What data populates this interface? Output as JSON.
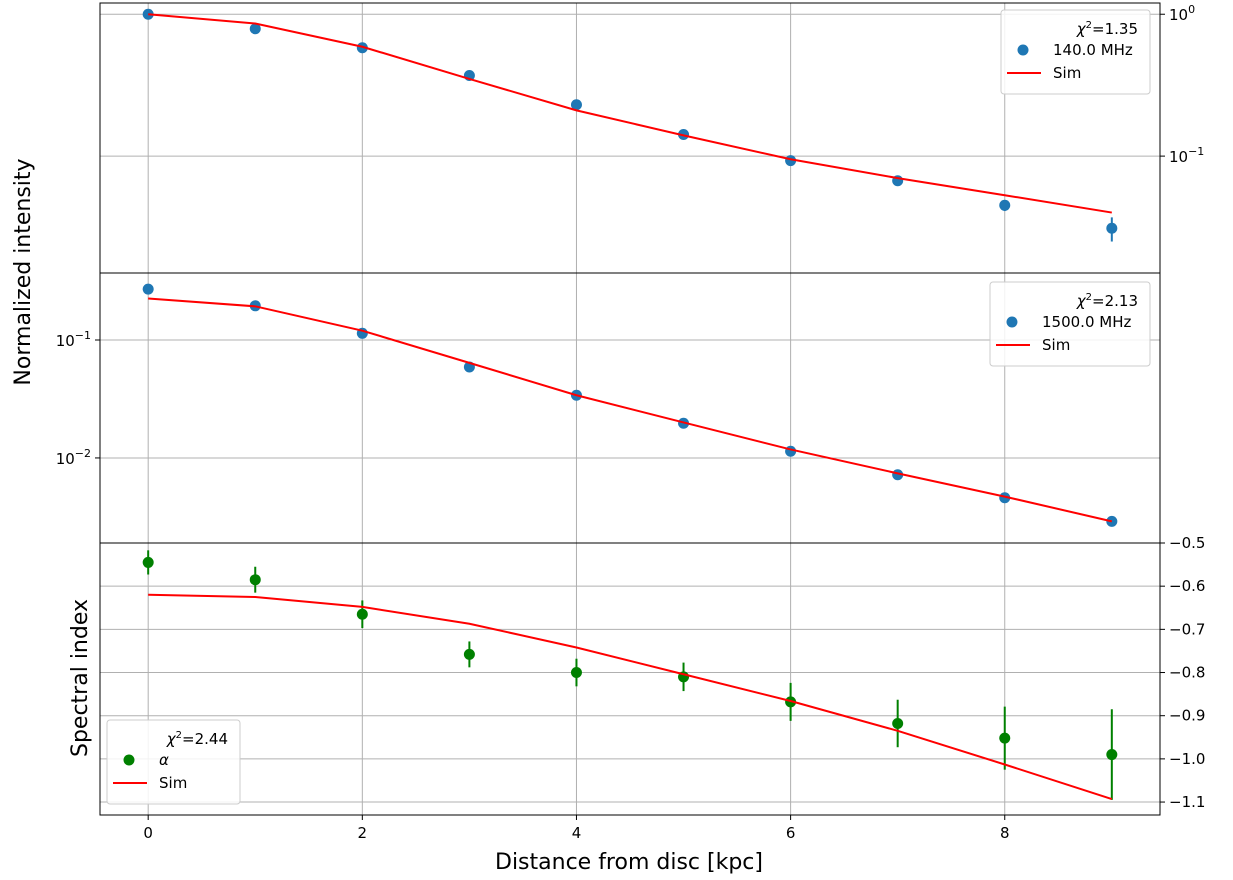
{
  "figure": {
    "xlabel": "Distance from disc [kpc]",
    "xticks": [
      0,
      2,
      4,
      6,
      8
    ],
    "colors": {
      "data_blue": "#1f77b4",
      "data_green": "#008000",
      "sim": "#ff0000",
      "grid": "#b0b0b0"
    }
  },
  "chart_data": [
    {
      "type": "scatter",
      "panel": "top",
      "ylabel": "Normalized intensity",
      "yscale": "log",
      "ylim": [
        0.015,
        1.2
      ],
      "yticks": [
        1,
        0.1
      ],
      "ytick_labels": [
        {
          "base": "10",
          "exp": "0"
        },
        {
          "base": "10",
          "exp": "−1"
        }
      ],
      "y_axis_side": "right",
      "xlim": [
        -0.45,
        9.45
      ],
      "grid": true,
      "legend": {
        "placement": "top-right",
        "title": "χ²=1.35",
        "chi_value": "1.35",
        "entries": [
          "140.0 MHz",
          "Sim"
        ]
      },
      "series": [
        {
          "name": "140.0 MHz",
          "kind": "errorbar-points",
          "color": "#1f77b4",
          "x": [
            0,
            1,
            2,
            3,
            4,
            5,
            6,
            7,
            8,
            9
          ],
          "y": [
            1.0,
            0.79,
            0.58,
            0.37,
            0.23,
            0.142,
            0.093,
            0.067,
            0.045,
            0.031
          ],
          "yerr": [
            0.0,
            0.0,
            0.0,
            0.0,
            0.0,
            0.0,
            0.0,
            0.002,
            0.004,
            0.006
          ]
        },
        {
          "name": "Sim",
          "kind": "line",
          "color": "#ff0000",
          "x": [
            0,
            1,
            2,
            3,
            4,
            5,
            6,
            7,
            8,
            9
          ],
          "y": [
            1.0,
            0.86,
            0.59,
            0.35,
            0.21,
            0.14,
            0.095,
            0.07,
            0.053,
            0.04
          ]
        }
      ]
    },
    {
      "type": "scatter",
      "panel": "middle",
      "yscale": "log",
      "ylim": [
        0.0019,
        0.37
      ],
      "yticks": [
        0.1,
        0.01
      ],
      "ytick_labels": [
        {
          "base": "10",
          "exp": "−1"
        },
        {
          "base": "10",
          "exp": "−2"
        }
      ],
      "y_axis_side": "left",
      "xlim": [
        -0.45,
        9.45
      ],
      "grid": true,
      "legend": {
        "placement": "top-right",
        "title": "χ²=2.13",
        "chi_value": "2.13",
        "entries": [
          "1500.0 MHz",
          "Sim"
        ]
      },
      "series": [
        {
          "name": "1500.0 MHz",
          "kind": "errorbar-points",
          "color": "#1f77b4",
          "x": [
            0,
            1,
            2,
            3,
            4,
            5,
            6,
            7,
            8,
            9
          ],
          "y": [
            0.27,
            0.195,
            0.114,
            0.059,
            0.034,
            0.0197,
            0.0114,
            0.0072,
            0.0046,
            0.0029
          ],
          "yerr": [
            0,
            0,
            0,
            0,
            0,
            0,
            0,
            0,
            0,
            0
          ]
        },
        {
          "name": "Sim",
          "kind": "line",
          "color": "#ff0000",
          "x": [
            0,
            1,
            2,
            3,
            4,
            5,
            6,
            7,
            8,
            9
          ],
          "y": [
            0.225,
            0.193,
            0.12,
            0.064,
            0.034,
            0.02,
            0.0118,
            0.0074,
            0.0047,
            0.0029
          ]
        }
      ]
    },
    {
      "type": "scatter",
      "panel": "bottom",
      "ylabel": "Spectral index",
      "yscale": "linear",
      "ylim": [
        -1.13,
        -0.5
      ],
      "yticks": [
        -0.5,
        -0.6,
        -0.7,
        -0.8,
        -0.9,
        -1.0,
        -1.1
      ],
      "ytick_labels": [
        "−0.5",
        "−0.6",
        "−0.7",
        "−0.8",
        "−0.9",
        "−1.0",
        "−1.1"
      ],
      "y_axis_side": "right",
      "xlim": [
        -0.45,
        9.45
      ],
      "grid": true,
      "legend": {
        "placement": "bottom-left",
        "title": "χ²=2.44",
        "chi_value": "2.44",
        "entries": [
          "α",
          "Sim"
        ]
      },
      "series": [
        {
          "name": "α",
          "kind": "errorbar-points",
          "color": "#008000",
          "x": [
            0,
            1,
            2,
            3,
            4,
            5,
            6,
            7,
            8,
            9
          ],
          "y": [
            -0.545,
            -0.585,
            -0.665,
            -0.758,
            -0.8,
            -0.81,
            -0.868,
            -0.918,
            -0.952,
            -0.99
          ],
          "yerr": [
            0.028,
            0.03,
            0.032,
            0.03,
            0.032,
            0.033,
            0.044,
            0.055,
            0.073,
            0.105
          ]
        },
        {
          "name": "Sim",
          "kind": "line",
          "color": "#ff0000",
          "x": [
            0,
            1,
            2,
            3,
            4,
            5,
            6,
            7,
            8,
            9
          ],
          "y": [
            -0.62,
            -0.625,
            -0.648,
            -0.687,
            -0.742,
            -0.804,
            -0.866,
            -0.935,
            -1.013,
            -1.093
          ]
        }
      ]
    }
  ]
}
